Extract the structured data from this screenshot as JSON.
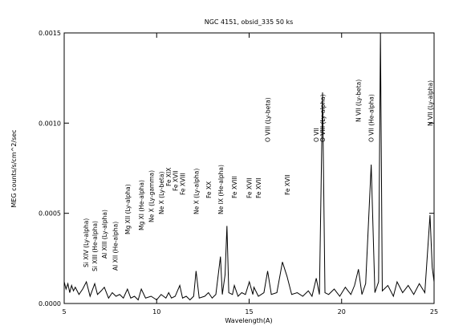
{
  "chart_data": {
    "type": "line",
    "title": "NGC 4151, obsid_335 50 ks",
    "x_label": "Wavelength(A)",
    "y_label": "MEG counts/s/cm^2/sec",
    "color": "#000000",
    "xlim": [
      5,
      25
    ],
    "xticks": [
      5,
      10,
      15,
      20,
      25
    ],
    "ylim": [
      0,
      0.0015
    ],
    "yticks": [
      {
        "value": 0,
        "label": "0.0000"
      },
      {
        "value": 0.0005,
        "label": "0.0005"
      },
      {
        "value": 0.001,
        "label": "0.0010"
      },
      {
        "value": 0.0015,
        "label": "0.0015"
      }
    ],
    "x": [
      5.0,
      5.1,
      5.2,
      5.3,
      5.4,
      5.5,
      5.6,
      5.8,
      6.0,
      6.2,
      6.4,
      6.65,
      6.8,
      7.0,
      7.17,
      7.4,
      7.6,
      7.8,
      8.0,
      8.2,
      8.42,
      8.6,
      8.8,
      9.0,
      9.17,
      9.4,
      9.7,
      10.0,
      10.24,
      10.5,
      10.65,
      10.8,
      11.0,
      11.25,
      11.4,
      11.6,
      11.8,
      12.0,
      12.13,
      12.3,
      12.6,
      12.8,
      13.0,
      13.2,
      13.45,
      13.55,
      13.7,
      13.8,
      13.9,
      14.1,
      14.2,
      14.4,
      14.6,
      14.8,
      15.01,
      15.2,
      15.26,
      15.5,
      15.8,
      16.0,
      16.2,
      16.5,
      16.8,
      17.05,
      17.3,
      17.6,
      17.9,
      18.2,
      18.4,
      18.63,
      18.8,
      18.97,
      19.1,
      19.3,
      19.6,
      19.9,
      20.2,
      20.5,
      20.7,
      20.91,
      21.1,
      21.3,
      21.6,
      21.8,
      22.0,
      22.1,
      22.2,
      22.5,
      22.8,
      23.0,
      23.3,
      23.6,
      23.9,
      24.2,
      24.5,
      24.78,
      24.9,
      25.0
    ],
    "series": [
      {
        "name": "MEG",
        "color": "#000000",
        "values": [
          0.00012,
          8e-05,
          0.00011,
          6e-05,
          0.0001,
          7e-05,
          9e-05,
          5e-05,
          8e-05,
          0.00012,
          4e-05,
          0.00011,
          5e-05,
          7e-05,
          9e-05,
          3e-05,
          6e-05,
          4e-05,
          5e-05,
          3e-05,
          8e-05,
          3e-05,
          4e-05,
          2e-05,
          8e-05,
          3e-05,
          4e-05,
          2e-05,
          5e-05,
          3e-05,
          6e-05,
          3e-05,
          4e-05,
          0.0001,
          3e-05,
          4e-05,
          2e-05,
          4e-05,
          0.00018,
          3e-05,
          4e-05,
          6e-05,
          3e-05,
          5e-05,
          0.00026,
          5e-05,
          0.00016,
          0.00043,
          6e-05,
          5e-05,
          0.0001,
          4e-05,
          6e-05,
          5e-05,
          0.00012,
          5e-05,
          9e-05,
          4e-05,
          6e-05,
          0.00018,
          5e-05,
          6e-05,
          0.00023,
          0.00015,
          5e-05,
          6e-05,
          4e-05,
          7e-05,
          4e-05,
          0.00014,
          5e-05,
          0.00117,
          6e-05,
          5e-05,
          8e-05,
          4e-05,
          9e-05,
          5e-05,
          0.0001,
          0.00019,
          5e-05,
          0.00011,
          0.00077,
          6e-05,
          0.00012,
          0.0015,
          7e-05,
          0.0001,
          4e-05,
          0.00012,
          6e-05,
          0.0001,
          5e-05,
          0.00011,
          6e-05,
          0.00049,
          0.0002,
          0.00012
        ]
      }
    ],
    "annotations": [
      {
        "text": "Si XIV (Ly-alpha)",
        "x": 6.18
      },
      {
        "text": "Si XIII (He-alpha)",
        "x": 6.65
      },
      {
        "text": "Al XIII (Ly-alpha)",
        "x": 7.17
      },
      {
        "text": "Al XII (He-alpha)",
        "x": 7.76
      },
      {
        "text": "Mg XII (Ly-alpha)",
        "x": 8.42
      },
      {
        "text": "Mg XI (He-alpha)",
        "x": 9.17
      },
      {
        "text": "Ne X (Ly-gamma)",
        "x": 9.71
      },
      {
        "text": "Ne X (Ly-beta)",
        "x": 10.24
      },
      {
        "text": "Fe XIX",
        "x": 10.65
      },
      {
        "text": "Fe XVII",
        "x": 11.0
      },
      {
        "text": "Fe XVIII",
        "x": 11.4
      },
      {
        "text": "Ne X (Ly-alpha)",
        "x": 12.13
      },
      {
        "text": "Fe XX",
        "x": 12.8
      },
      {
        "text": "Ne IX (He-alpha)",
        "x": 13.45
      },
      {
        "text": "Fe XVIII",
        "x": 14.2
      },
      {
        "text": "Fe XVII",
        "x": 15.01
      },
      {
        "text": "Fe XVII",
        "x": 15.5
      },
      {
        "text": "O VIII (Ly-beta)",
        "x": 16.0
      },
      {
        "text": "Fe XVII",
        "x": 17.05
      },
      {
        "text": "O VII",
        "x": 18.63
      },
      {
        "text": "O VIII (Ly-alpha)",
        "x": 18.97
      },
      {
        "text": "N VII (Ly-beta)",
        "x": 20.91
      },
      {
        "text": "O VII (He-alpha)",
        "x": 21.6
      },
      {
        "text": "N VII (Ly-alpha)",
        "x": 24.78
      }
    ]
  }
}
